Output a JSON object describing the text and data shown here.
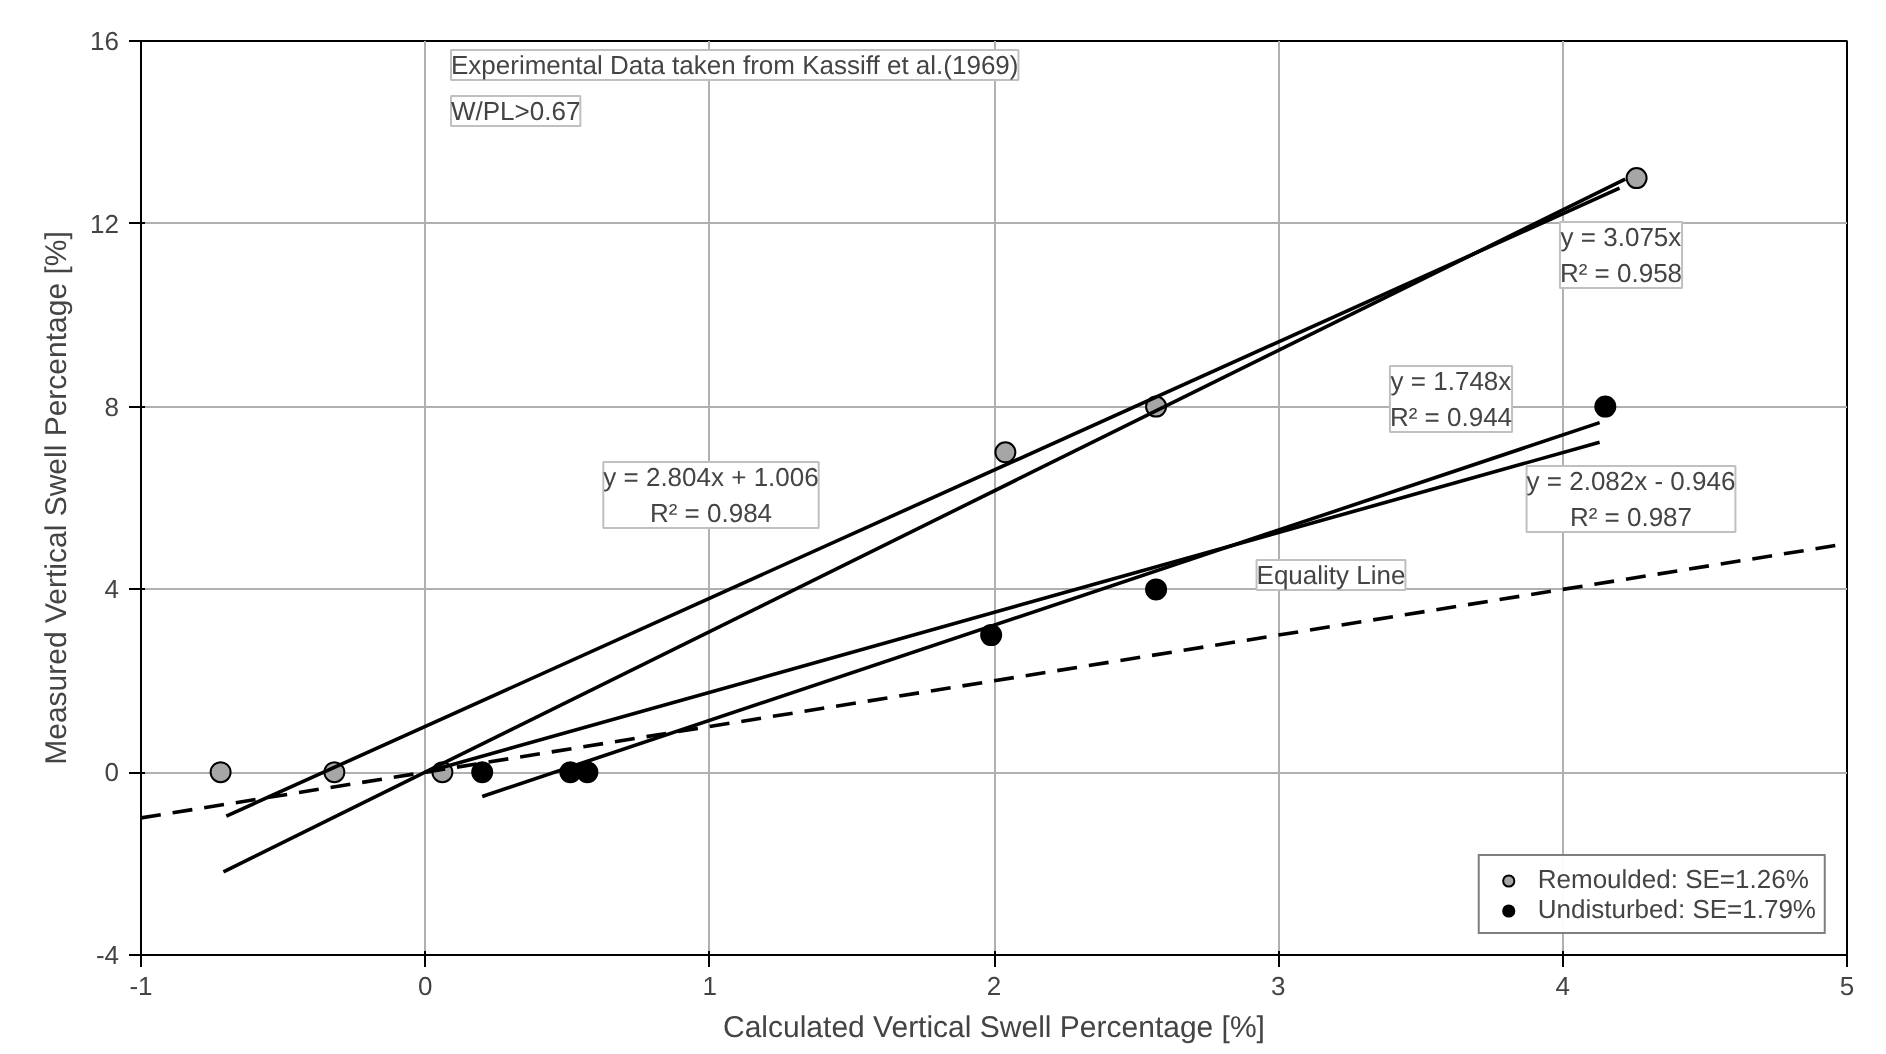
{
  "chart_data": {
    "type": "scatter",
    "xlabel": "Calculated Vertical Swell Percentage [%]",
    "ylabel": "Measured Vertical Swell Percentage [%]",
    "xlim": [
      -1,
      5
    ],
    "ylim": [
      -4,
      16
    ],
    "xticks": [
      -1,
      0,
      1,
      2,
      3,
      4,
      5
    ],
    "yticks": [
      -4,
      0,
      4,
      8,
      12,
      16
    ],
    "grid": true,
    "legend": "bottom right",
    "series": [
      {
        "name": "Remoulded: SE=1.26%",
        "marker": "circle",
        "color": "#a6a6a6",
        "x": [
          -0.72,
          -0.32,
          0.06,
          2.04,
          2.57,
          4.26
        ],
        "values": [
          0,
          0,
          0,
          7,
          8,
          13
        ]
      },
      {
        "name": "Undisturbed: SE=1.79%",
        "marker": "circle",
        "color": "#000000",
        "x": [
          0.2,
          0.51,
          0.57,
          1.99,
          2.57,
          4.15
        ],
        "values": [
          0,
          0,
          0,
          3,
          4,
          8
        ]
      },
      {
        "type": "line",
        "color": "#000000",
        "x": [
          -0.71,
          4.22
        ],
        "values": [
          -2.18,
          12.98
        ]
      },
      {
        "type": "line",
        "color": "#000000",
        "x": [
          -0.7,
          4.2
        ],
        "values": [
          -0.96,
          12.78
        ]
      },
      {
        "type": "line",
        "color": "#000000",
        "x": [
          0,
          4.13
        ],
        "values": [
          0,
          7.22
        ]
      },
      {
        "type": "line",
        "color": "#000000",
        "x": [
          0.2,
          4.13
        ],
        "values": [
          -0.53,
          7.65
        ]
      },
      {
        "type": "line",
        "color": "#000000",
        "line_style": "dashed",
        "x": [
          -1,
          5
        ],
        "values": [
          -1,
          5
        ]
      }
    ],
    "annotations": [
      "Experimental Data taken from Kassiff et al.(1969)",
      "W/PL>0.67",
      "y = 3.075x\nR² = 0.958",
      "y = 1.748x\nR² = 0.944",
      "y = 2.082x - 0.946\nR² = 0.987",
      "y = 2.804x + 1.006\nR² = 0.984",
      "Equality Line"
    ]
  }
}
